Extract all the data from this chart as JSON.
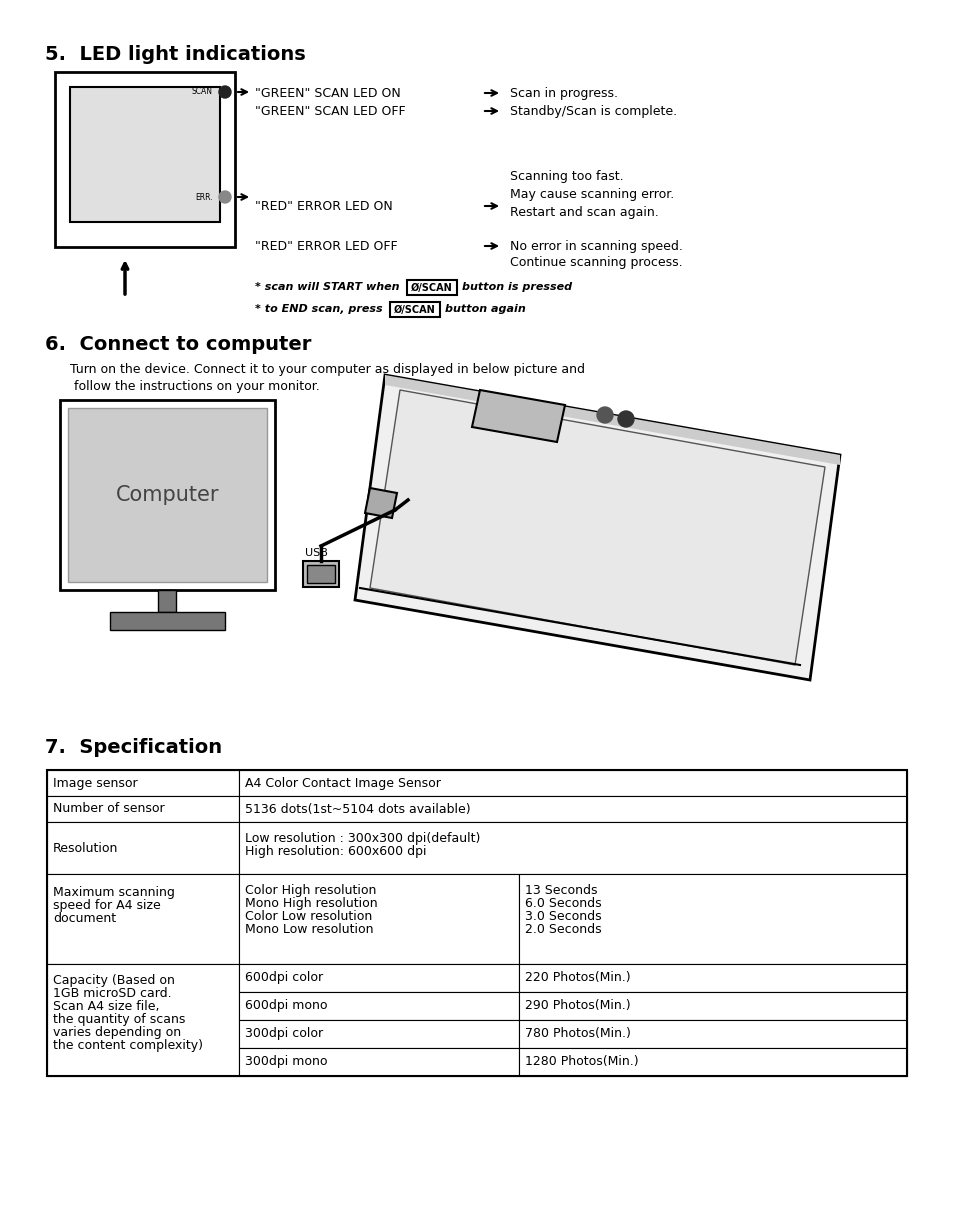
{
  "bg_color": "#ffffff",
  "section5_title": "5.  LED light indications",
  "section6_title": "6.  Connect to computer",
  "section7_title": "7.  Specification",
  "section6_body1": "Turn on the device. Connect it to your computer as displayed in below picture and",
  "section6_body2": " follow the instructions on your monitor.",
  "scan_note1": "* scan will START when",
  "scan_btn": "Ø/SCAN",
  "scan_note1b": "button is pressed",
  "scan_note2": "* to END scan, press",
  "scan_note2b": "button again"
}
